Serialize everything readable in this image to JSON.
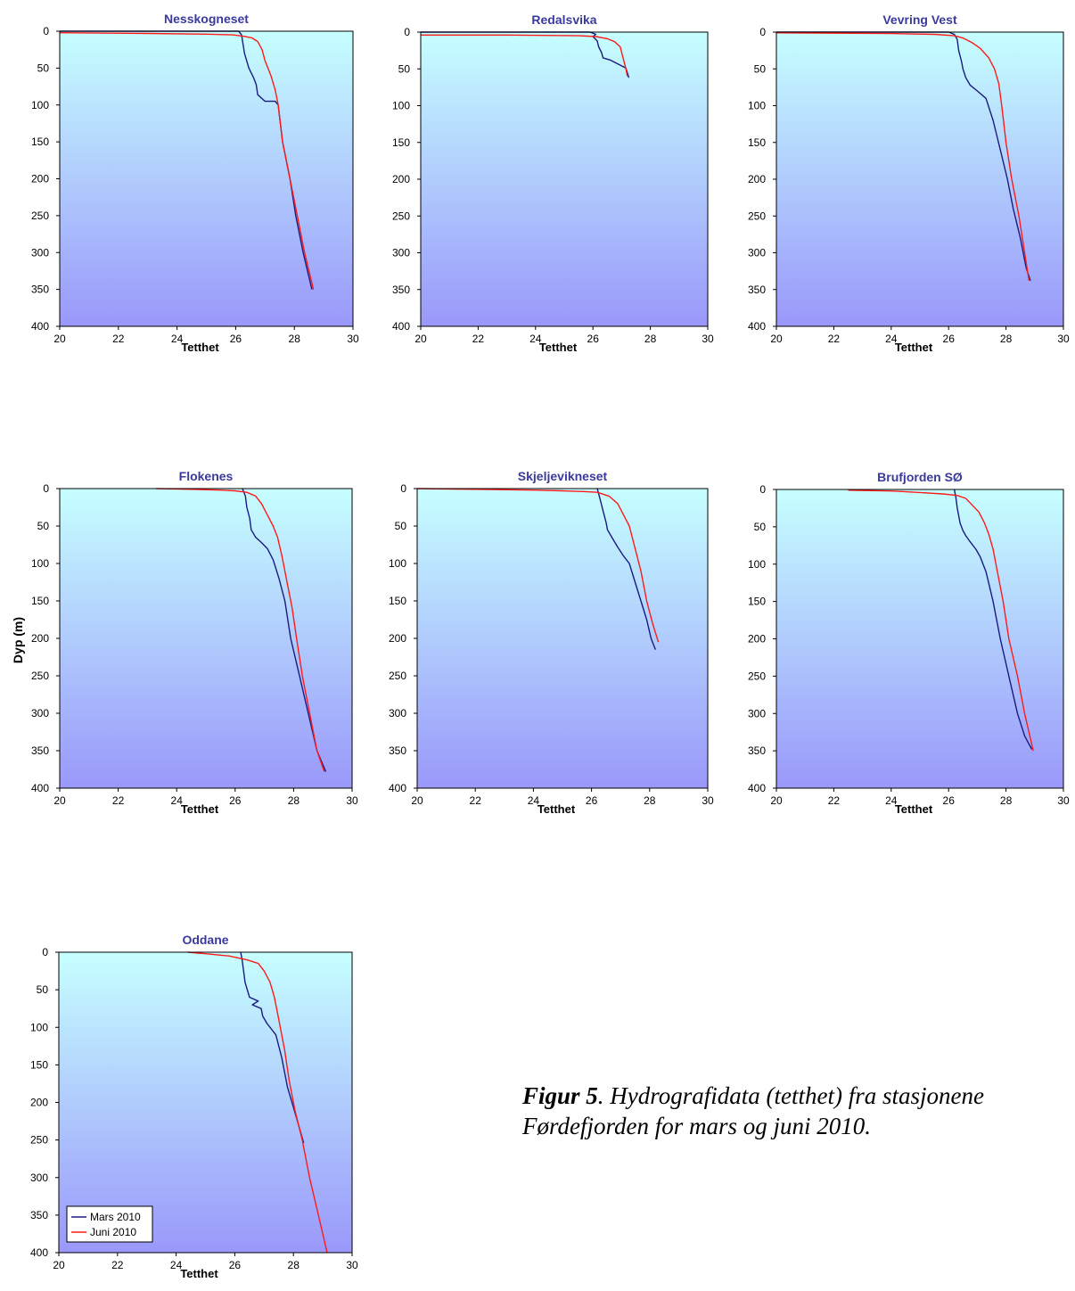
{
  "figure": {
    "ylabel": "Dyp (m)",
    "caption_label": "Figur 5",
    "caption_text": ". Hydrografidata (tetthet) fra stasjonene Førdefjorden for mars og juni 2010."
  },
  "colors": {
    "mars": "#1a1a80",
    "juni": "#ff1a1a",
    "title": "#3a3a9c",
    "bg_top": "#c6ffff",
    "bg_bottom": "#9a98fa"
  },
  "chart_data": [
    {
      "type": "line",
      "title": "Nesskogneset",
      "xlabel": "Tetthet",
      "xlim": [
        20,
        30
      ],
      "ylim": [
        0,
        400
      ],
      "y_inverted": true,
      "xticks": [
        20,
        22,
        24,
        26,
        28,
        30
      ],
      "yticks": [
        0,
        50,
        100,
        150,
        200,
        250,
        300,
        350,
        400
      ],
      "grid": false,
      "series": [
        {
          "name": "Mars 2010",
          "points": [
            [
              20.0,
              0
            ],
            [
              26.1,
              0
            ],
            [
              26.2,
              5
            ],
            [
              26.3,
              30
            ],
            [
              26.45,
              50
            ],
            [
              26.6,
              62
            ],
            [
              26.7,
              72
            ],
            [
              26.75,
              86
            ],
            [
              27.0,
              95
            ],
            [
              27.35,
              95
            ],
            [
              27.45,
              100
            ],
            [
              27.6,
              150
            ],
            [
              27.85,
              200
            ],
            [
              28.05,
              250
            ],
            [
              28.3,
              300
            ],
            [
              28.6,
              350
            ]
          ]
        },
        {
          "name": "Juni 2010",
          "points": [
            [
              20.0,
              2
            ],
            [
              23.0,
              3
            ],
            [
              25.0,
              4
            ],
            [
              25.9,
              5
            ],
            [
              26.3,
              7
            ],
            [
              26.55,
              9
            ],
            [
              26.75,
              14
            ],
            [
              26.9,
              25
            ],
            [
              27.0,
              40
            ],
            [
              27.2,
              60
            ],
            [
              27.35,
              80
            ],
            [
              27.45,
              100
            ],
            [
              27.6,
              150
            ],
            [
              27.85,
              200
            ],
            [
              28.1,
              250
            ],
            [
              28.35,
              300
            ],
            [
              28.65,
              350
            ]
          ]
        }
      ]
    },
    {
      "type": "line",
      "title": "Redalsvika",
      "xlabel": "Tetthet",
      "xlim": [
        20,
        30
      ],
      "ylim": [
        0,
        400
      ],
      "y_inverted": true,
      "xticks": [
        20,
        22,
        24,
        26,
        28,
        30
      ],
      "yticks": [
        0,
        50,
        100,
        150,
        200,
        250,
        300,
        350,
        400
      ],
      "grid": false,
      "series": [
        {
          "name": "Mars 2010",
          "points": [
            [
              20.0,
              0
            ],
            [
              25.9,
              0
            ],
            [
              26.1,
              3
            ],
            [
              26.0,
              6
            ],
            [
              26.15,
              12
            ],
            [
              26.2,
              20
            ],
            [
              26.3,
              28
            ],
            [
              26.35,
              35
            ],
            [
              26.6,
              38
            ],
            [
              26.9,
              44
            ],
            [
              27.15,
              49
            ],
            [
              27.25,
              62
            ]
          ]
        },
        {
          "name": "Juni 2010",
          "points": [
            [
              20.0,
              4
            ],
            [
              23.0,
              4
            ],
            [
              25.5,
              5
            ],
            [
              26.1,
              6
            ],
            [
              26.5,
              9
            ],
            [
              26.75,
              13
            ],
            [
              26.95,
              20
            ],
            [
              27.05,
              35
            ],
            [
              27.15,
              50
            ],
            [
              27.2,
              60
            ]
          ]
        }
      ]
    },
    {
      "type": "line",
      "title": "Vevring Vest",
      "xlabel": "Tetthet",
      "xlim": [
        20,
        30
      ],
      "ylim": [
        0,
        400
      ],
      "y_inverted": true,
      "xticks": [
        20,
        22,
        24,
        26,
        28,
        30
      ],
      "yticks": [
        0,
        50,
        100,
        150,
        200,
        250,
        300,
        350,
        400
      ],
      "grid": false,
      "series": [
        {
          "name": "Mars 2010",
          "points": [
            [
              20.0,
              0
            ],
            [
              26.0,
              0
            ],
            [
              26.2,
              3
            ],
            [
              26.3,
              10
            ],
            [
              26.35,
              25
            ],
            [
              26.45,
              40
            ],
            [
              26.5,
              50
            ],
            [
              26.6,
              62
            ],
            [
              26.75,
              72
            ],
            [
              27.0,
              80
            ],
            [
              27.3,
              90
            ],
            [
              27.55,
              120
            ],
            [
              27.8,
              160
            ],
            [
              28.05,
              200
            ],
            [
              28.25,
              240
            ],
            [
              28.5,
              280
            ],
            [
              28.7,
              320
            ],
            [
              28.85,
              338
            ]
          ]
        },
        {
          "name": "Juni 2010",
          "points": [
            [
              20.0,
              1
            ],
            [
              24.0,
              2
            ],
            [
              25.5,
              3
            ],
            [
              26.2,
              5
            ],
            [
              26.5,
              8
            ],
            [
              26.8,
              14
            ],
            [
              27.1,
              22
            ],
            [
              27.4,
              35
            ],
            [
              27.6,
              50
            ],
            [
              27.75,
              70
            ],
            [
              27.85,
              100
            ],
            [
              28.0,
              150
            ],
            [
              28.2,
              200
            ],
            [
              28.45,
              250
            ],
            [
              28.65,
              300
            ],
            [
              28.8,
              338
            ]
          ]
        }
      ]
    },
    {
      "type": "line",
      "title": "Flokenes",
      "xlabel": "Tetthet",
      "xlim": [
        20,
        30
      ],
      "ylim": [
        0,
        400
      ],
      "y_inverted": true,
      "xticks": [
        20,
        22,
        24,
        26,
        28,
        30
      ],
      "yticks": [
        0,
        50,
        100,
        150,
        200,
        250,
        300,
        350,
        400
      ],
      "grid": false,
      "series": [
        {
          "name": "Mars 2010",
          "points": [
            [
              26.25,
              0
            ],
            [
              26.35,
              10
            ],
            [
              26.4,
              25
            ],
            [
              26.5,
              40
            ],
            [
              26.55,
              55
            ],
            [
              26.7,
              65
            ],
            [
              26.9,
              72
            ],
            [
              27.1,
              80
            ],
            [
              27.3,
              95
            ],
            [
              27.5,
              120
            ],
            [
              27.7,
              150
            ],
            [
              27.9,
              200
            ],
            [
              28.2,
              250
            ],
            [
              28.5,
              300
            ],
            [
              28.8,
              350
            ],
            [
              29.1,
              378
            ]
          ]
        },
        {
          "name": "Juni 2010",
          "points": [
            [
              23.3,
              0
            ],
            [
              24.5,
              1
            ],
            [
              25.5,
              2
            ],
            [
              26.0,
              3
            ],
            [
              26.4,
              5
            ],
            [
              26.7,
              10
            ],
            [
              26.9,
              20
            ],
            [
              27.1,
              35
            ],
            [
              27.3,
              50
            ],
            [
              27.45,
              65
            ],
            [
              27.6,
              90
            ],
            [
              27.75,
              120
            ],
            [
              27.95,
              160
            ],
            [
              28.1,
              200
            ],
            [
              28.3,
              250
            ],
            [
              28.55,
              300
            ],
            [
              28.8,
              350
            ],
            [
              29.05,
              378
            ]
          ]
        }
      ]
    },
    {
      "type": "line",
      "title": "Skjeljevikneset",
      "xlabel": "Tetthet",
      "xlim": [
        20,
        30
      ],
      "ylim": [
        0,
        400
      ],
      "y_inverted": true,
      "xticks": [
        20,
        22,
        24,
        26,
        28,
        30
      ],
      "yticks": [
        0,
        50,
        100,
        150,
        200,
        250,
        300,
        350,
        400
      ],
      "grid": false,
      "series": [
        {
          "name": "Mars 2010",
          "points": [
            [
              26.2,
              0
            ],
            [
              26.3,
              15
            ],
            [
              26.4,
              30
            ],
            [
              26.5,
              45
            ],
            [
              26.55,
              55
            ],
            [
              26.7,
              65
            ],
            [
              26.9,
              78
            ],
            [
              27.1,
              90
            ],
            [
              27.3,
              100
            ],
            [
              27.5,
              125
            ],
            [
              27.7,
              150
            ],
            [
              27.9,
              175
            ],
            [
              28.05,
              200
            ],
            [
              28.2,
              215
            ]
          ]
        },
        {
          "name": "Juni 2010",
          "points": [
            [
              20.0,
              0
            ],
            [
              22.0,
              1
            ],
            [
              24.0,
              2
            ],
            [
              25.0,
              3
            ],
            [
              25.8,
              4
            ],
            [
              26.2,
              5
            ],
            [
              26.6,
              10
            ],
            [
              26.9,
              20
            ],
            [
              27.1,
              35
            ],
            [
              27.3,
              50
            ],
            [
              27.5,
              80
            ],
            [
              27.7,
              110
            ],
            [
              27.9,
              150
            ],
            [
              28.1,
              180
            ],
            [
              28.3,
              205
            ]
          ]
        }
      ]
    },
    {
      "type": "line",
      "title": "Brufjorden SØ",
      "xlabel": "Tetthet",
      "xlim": [
        20,
        30
      ],
      "ylim": [
        0,
        400
      ],
      "y_inverted": true,
      "xticks": [
        20,
        22,
        24,
        26,
        28,
        30
      ],
      "yticks": [
        0,
        50,
        100,
        150,
        200,
        250,
        300,
        350,
        400
      ],
      "grid": false,
      "series": [
        {
          "name": "Mars 2010",
          "points": [
            [
              26.2,
              0
            ],
            [
              26.25,
              10
            ],
            [
              26.3,
              25
            ],
            [
              26.4,
              45
            ],
            [
              26.5,
              55
            ],
            [
              26.6,
              62
            ],
            [
              26.75,
              70
            ],
            [
              26.95,
              80
            ],
            [
              27.1,
              90
            ],
            [
              27.3,
              110
            ],
            [
              27.55,
              150
            ],
            [
              27.8,
              200
            ],
            [
              28.1,
              250
            ],
            [
              28.4,
              300
            ],
            [
              28.65,
              330
            ],
            [
              28.9,
              348
            ]
          ]
        },
        {
          "name": "Juni 2010",
          "points": [
            [
              22.5,
              1
            ],
            [
              24.0,
              2
            ],
            [
              25.0,
              4
            ],
            [
              25.8,
              6
            ],
            [
              26.3,
              8
            ],
            [
              26.6,
              12
            ],
            [
              26.8,
              20
            ],
            [
              27.05,
              30
            ],
            [
              27.25,
              45
            ],
            [
              27.4,
              60
            ],
            [
              27.55,
              80
            ],
            [
              27.7,
              110
            ],
            [
              27.9,
              150
            ],
            [
              28.1,
              200
            ],
            [
              28.4,
              250
            ],
            [
              28.65,
              300
            ],
            [
              28.95,
              350
            ]
          ]
        }
      ]
    },
    {
      "type": "line",
      "title": "Oddane",
      "xlabel": "Tetthet",
      "xlim": [
        20,
        30
      ],
      "ylim": [
        0,
        400
      ],
      "y_inverted": true,
      "xticks": [
        20,
        22,
        24,
        26,
        28,
        30
      ],
      "yticks": [
        0,
        50,
        100,
        150,
        200,
        250,
        300,
        350,
        400
      ],
      "grid": false,
      "legend_position": "bottom-left",
      "series": [
        {
          "name": "Mars 2010",
          "points": [
            [
              26.2,
              0
            ],
            [
              26.25,
              10
            ],
            [
              26.3,
              25
            ],
            [
              26.35,
              40
            ],
            [
              26.5,
              60
            ],
            [
              26.8,
              65
            ],
            [
              26.6,
              70
            ],
            [
              26.9,
              75
            ],
            [
              26.95,
              85
            ],
            [
              27.1,
              95
            ],
            [
              27.4,
              110
            ],
            [
              27.6,
              140
            ],
            [
              27.8,
              180
            ],
            [
              28.1,
              220
            ],
            [
              28.35,
              254
            ]
          ]
        },
        {
          "name": "Juni 2010",
          "points": [
            [
              24.4,
              0
            ],
            [
              25.0,
              2
            ],
            [
              25.8,
              5
            ],
            [
              26.4,
              10
            ],
            [
              26.8,
              15
            ],
            [
              27.0,
              25
            ],
            [
              27.2,
              40
            ],
            [
              27.35,
              60
            ],
            [
              27.5,
              90
            ],
            [
              27.7,
              130
            ],
            [
              27.85,
              170
            ],
            [
              28.05,
              210
            ],
            [
              28.3,
              250
            ],
            [
              28.55,
              300
            ],
            [
              28.85,
              350
            ],
            [
              29.15,
              400
            ]
          ]
        }
      ]
    }
  ]
}
